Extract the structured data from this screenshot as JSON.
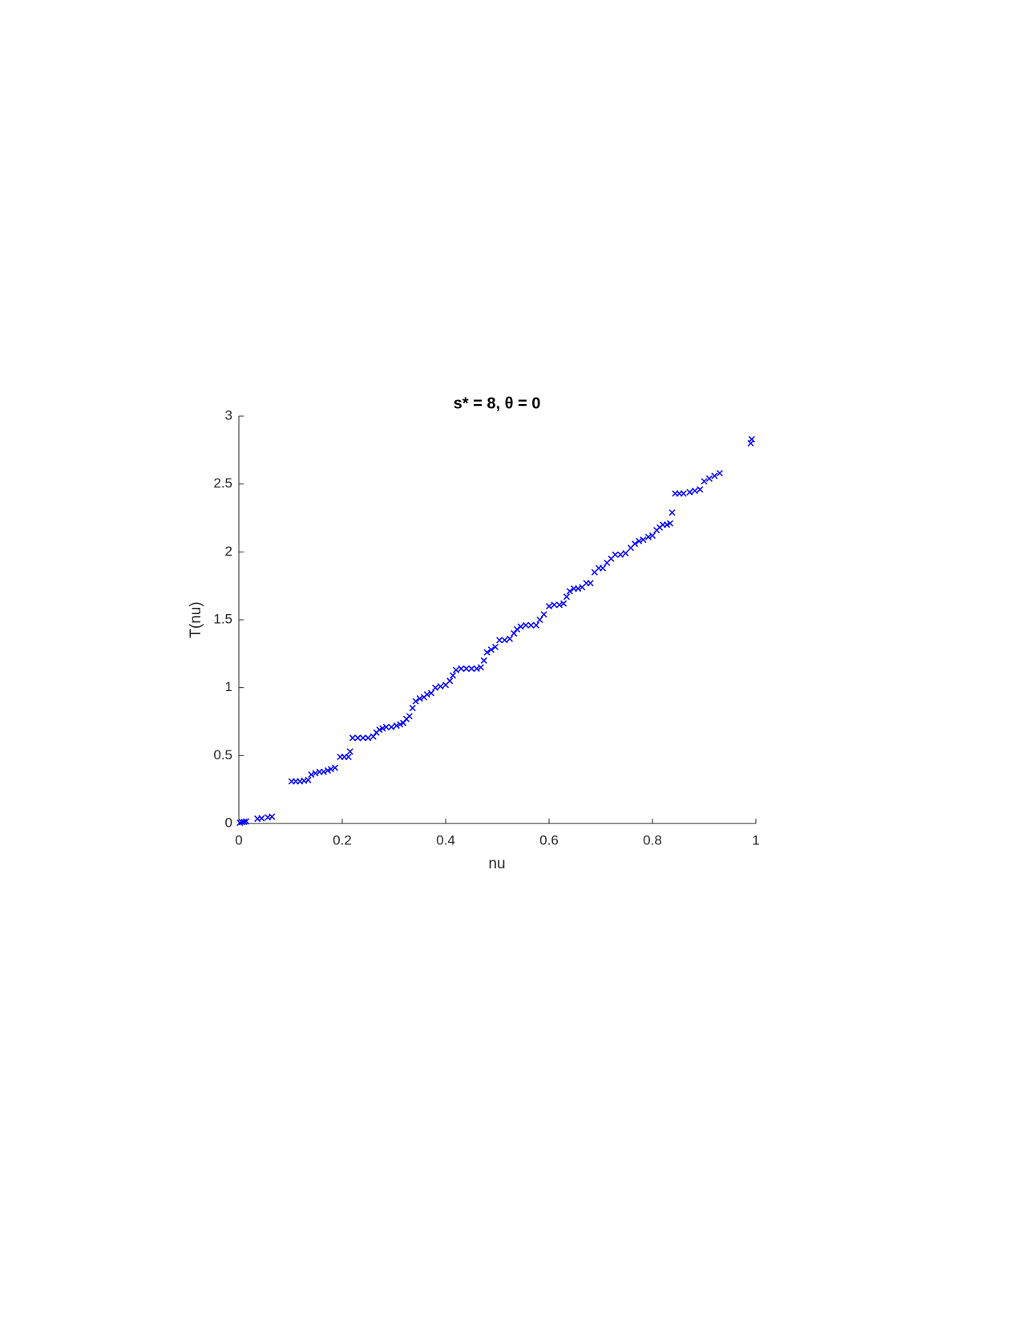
{
  "chart_data": {
    "type": "scatter",
    "title": "s* = 8, θ = 0",
    "x_label": "nu",
    "y_label": "T(nu)",
    "marker": "x",
    "color": "#0000ff",
    "x": [
      0.002,
      0.006,
      0.01,
      0.014,
      0.036,
      0.044,
      0.056,
      0.064,
      0.102,
      0.11,
      0.118,
      0.126,
      0.134,
      0.14,
      0.148,
      0.156,
      0.164,
      0.172,
      0.178,
      0.186,
      0.196,
      0.204,
      0.212,
      0.215,
      0.22,
      0.23,
      0.24,
      0.25,
      0.26,
      0.266,
      0.272,
      0.278,
      0.285,
      0.295,
      0.305,
      0.312,
      0.318,
      0.324,
      0.33,
      0.336,
      0.342,
      0.35,
      0.358,
      0.364,
      0.372,
      0.38,
      0.39,
      0.4,
      0.408,
      0.414,
      0.42,
      0.43,
      0.44,
      0.45,
      0.46,
      0.468,
      0.474,
      0.48,
      0.488,
      0.496,
      0.504,
      0.514,
      0.524,
      0.532,
      0.538,
      0.545,
      0.555,
      0.565,
      0.575,
      0.582,
      0.59,
      0.6,
      0.61,
      0.62,
      0.628,
      0.634,
      0.64,
      0.648,
      0.656,
      0.664,
      0.672,
      0.68,
      0.688,
      0.696,
      0.704,
      0.712,
      0.72,
      0.728,
      0.738,
      0.748,
      0.758,
      0.766,
      0.774,
      0.782,
      0.792,
      0.8,
      0.808,
      0.814,
      0.82,
      0.828,
      0.834,
      0.838,
      0.844,
      0.852,
      0.86,
      0.872,
      0.882,
      0.892,
      0.9,
      0.91,
      0.92,
      0.93,
      0.99,
      0.992
    ],
    "values": [
      0.005,
      0.01,
      0.012,
      0.015,
      0.035,
      0.038,
      0.045,
      0.05,
      0.31,
      0.31,
      0.31,
      0.315,
      0.32,
      0.36,
      0.37,
      0.38,
      0.38,
      0.39,
      0.4,
      0.41,
      0.49,
      0.49,
      0.49,
      0.53,
      0.63,
      0.63,
      0.63,
      0.63,
      0.64,
      0.67,
      0.69,
      0.7,
      0.71,
      0.71,
      0.72,
      0.73,
      0.74,
      0.77,
      0.79,
      0.85,
      0.9,
      0.92,
      0.93,
      0.95,
      0.96,
      1.0,
      1.01,
      1.02,
      1.05,
      1.09,
      1.13,
      1.14,
      1.14,
      1.14,
      1.14,
      1.15,
      1.2,
      1.26,
      1.28,
      1.3,
      1.35,
      1.35,
      1.36,
      1.4,
      1.43,
      1.45,
      1.46,
      1.46,
      1.46,
      1.5,
      1.54,
      1.6,
      1.61,
      1.61,
      1.62,
      1.67,
      1.71,
      1.73,
      1.73,
      1.74,
      1.77,
      1.77,
      1.85,
      1.88,
      1.88,
      1.92,
      1.95,
      1.98,
      1.98,
      1.99,
      2.03,
      2.06,
      2.08,
      2.09,
      2.11,
      2.12,
      2.16,
      2.18,
      2.2,
      2.2,
      2.21,
      2.29,
      2.43,
      2.43,
      2.43,
      2.44,
      2.45,
      2.46,
      2.52,
      2.54,
      2.56,
      2.58,
      2.8,
      2.83
    ],
    "xlim": [
      0,
      1
    ],
    "xticks": [
      0,
      0.2,
      0.4,
      0.6,
      0.8,
      1
    ],
    "ylim": [
      0,
      3
    ],
    "yticks": [
      0,
      0.5,
      1,
      1.5,
      2,
      2.5,
      3
    ]
  }
}
